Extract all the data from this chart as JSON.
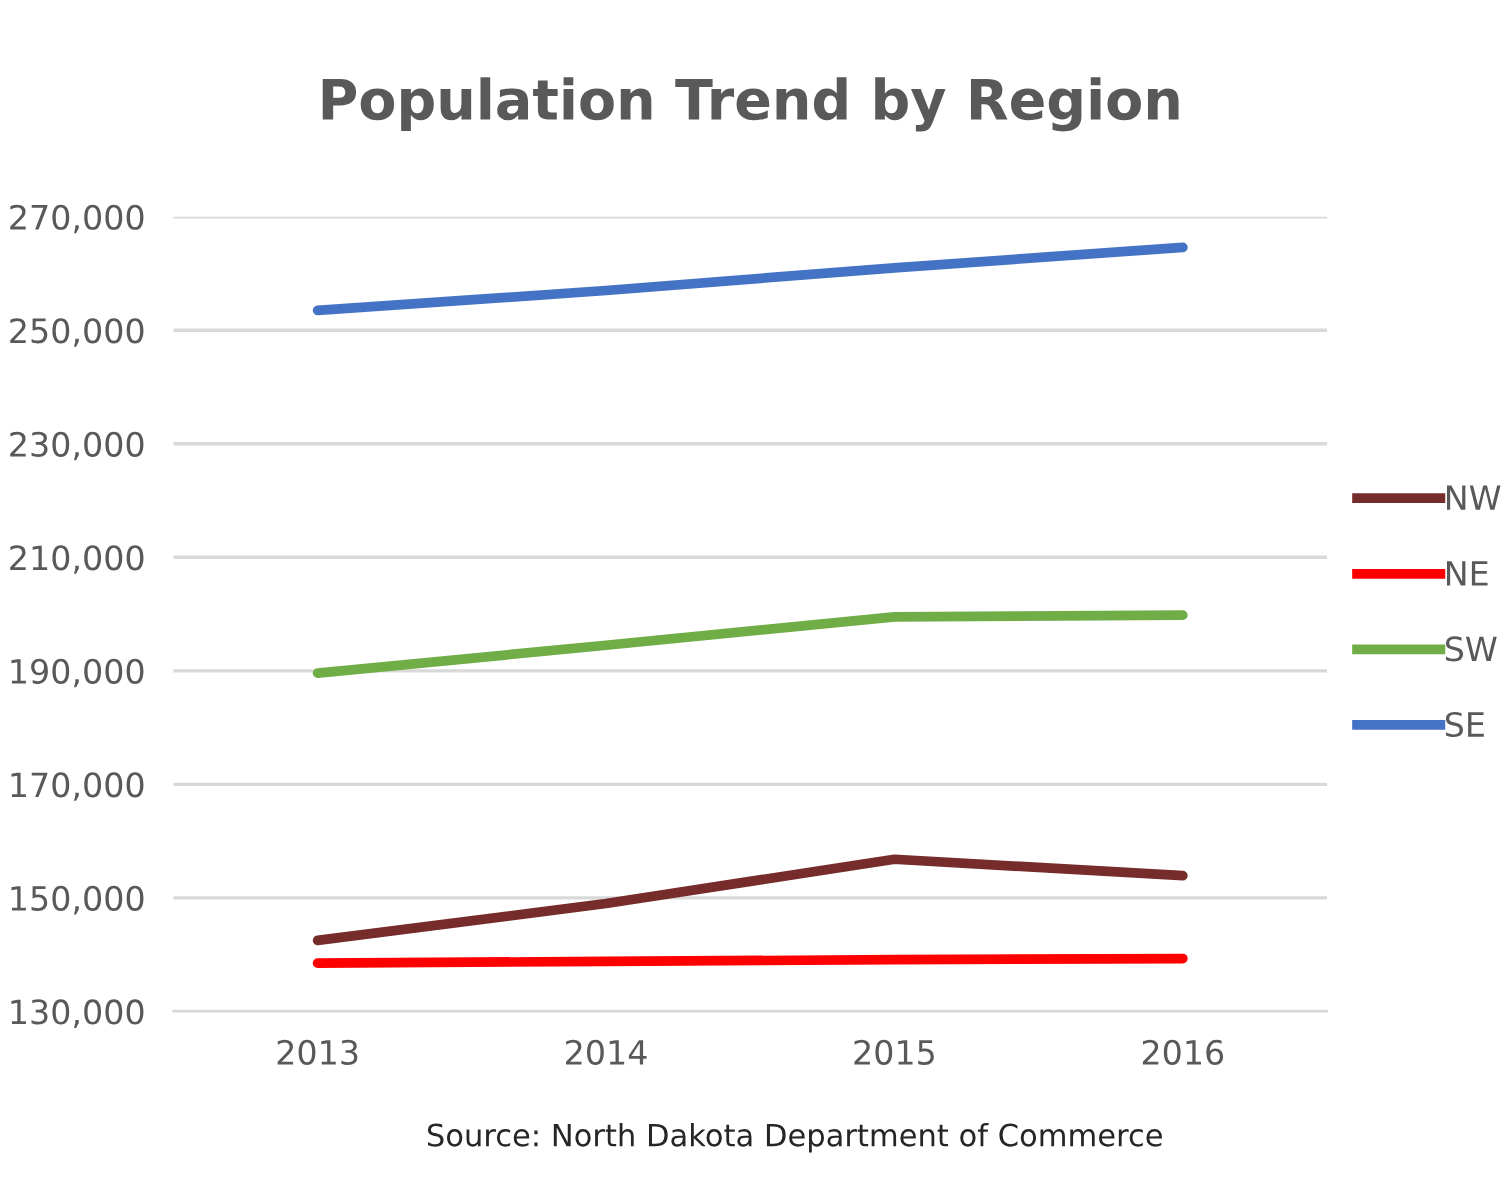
{
  "chart_data": {
    "type": "line",
    "title": "Population Trend by Region",
    "categories": [
      "2013",
      "2014",
      "2015",
      "2016"
    ],
    "series": [
      {
        "name": "NW",
        "color": "#772c2c",
        "values": [
          142500,
          149000,
          156800,
          153900
        ]
      },
      {
        "name": "NE",
        "color": "#ff0000",
        "values": [
          138500,
          138800,
          139100,
          139300
        ]
      },
      {
        "name": "SW",
        "color": "#70ad47",
        "values": [
          189600,
          194500,
          199500,
          199800
        ]
      },
      {
        "name": "SE",
        "color": "#4472c4",
        "values": [
          253500,
          257000,
          261000,
          264600
        ]
      }
    ],
    "ylim": [
      130000,
      270000
    ],
    "yticks": [
      {
        "value": 130000,
        "label": "130,000"
      },
      {
        "value": 150000,
        "label": "150,000"
      },
      {
        "value": 170000,
        "label": "170,000"
      },
      {
        "value": 190000,
        "label": "190,000"
      },
      {
        "value": 210000,
        "label": "210,000"
      },
      {
        "value": 230000,
        "label": "230,000"
      },
      {
        "value": 250000,
        "label": "250,000"
      },
      {
        "value": 270000,
        "label": "270,000"
      }
    ],
    "grid": "y",
    "legend": "right",
    "marker": "none",
    "line_style": "solid",
    "annotations": [
      "Source: North Dakota Department of Commerce"
    ]
  }
}
